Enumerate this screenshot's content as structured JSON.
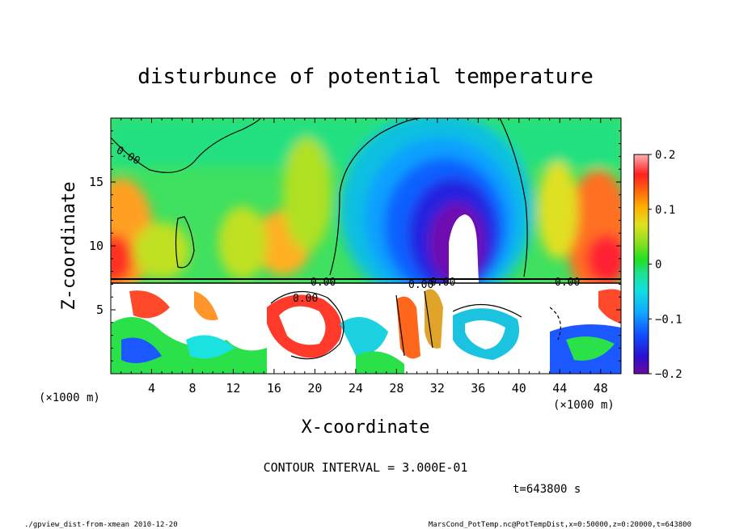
{
  "chart_data": {
    "type": "heatmap",
    "title": "disturbunce of potential temperature",
    "xlabel": "X-coordinate",
    "ylabel": "Z-coordinate",
    "x_unit_left": "(×1000 m)",
    "x_unit_right": "(×1000 m)",
    "xlim": [
      0,
      50
    ],
    "ylim": [
      0,
      20
    ],
    "x_ticks": [
      "4",
      "8",
      "12",
      "16",
      "20",
      "24",
      "28",
      "32",
      "36",
      "40",
      "44",
      "48"
    ],
    "y_ticks": [
      "5",
      "10",
      "15"
    ],
    "colorbar_ticks": [
      "0.2",
      "0.1",
      "0",
      "−0.1",
      "−0.2"
    ],
    "colorbar_range": [
      -0.2,
      0.2
    ],
    "contour_interval_text": "CONTOUR INTERVAL = 3.000E-01",
    "time_text": "t=643800 s",
    "contour_labels": [
      "0.00",
      "0.00",
      "0.00",
      "0.00",
      "0.00",
      "0.00"
    ],
    "field_summary": [
      {
        "region": "x 33-36, z 9-13",
        "value": -0.2
      },
      {
        "region": "x 20-40, z 10-17 (arch)",
        "value": -0.15
      },
      {
        "region": "x 0-5, z 8-16",
        "value": 0.12
      },
      {
        "region": "x 44-50, z 8-16",
        "value": 0.15
      },
      {
        "region": "x 0-50, z 18-20",
        "value": 0.0
      }
    ]
  },
  "footer": {
    "left": "./gpview_dist-from-xmean  2010-12-20",
    "right": "MarsCond_PotTemp.nc@PotTempDist,x=0:50000,z=0:20000,t=643800"
  }
}
